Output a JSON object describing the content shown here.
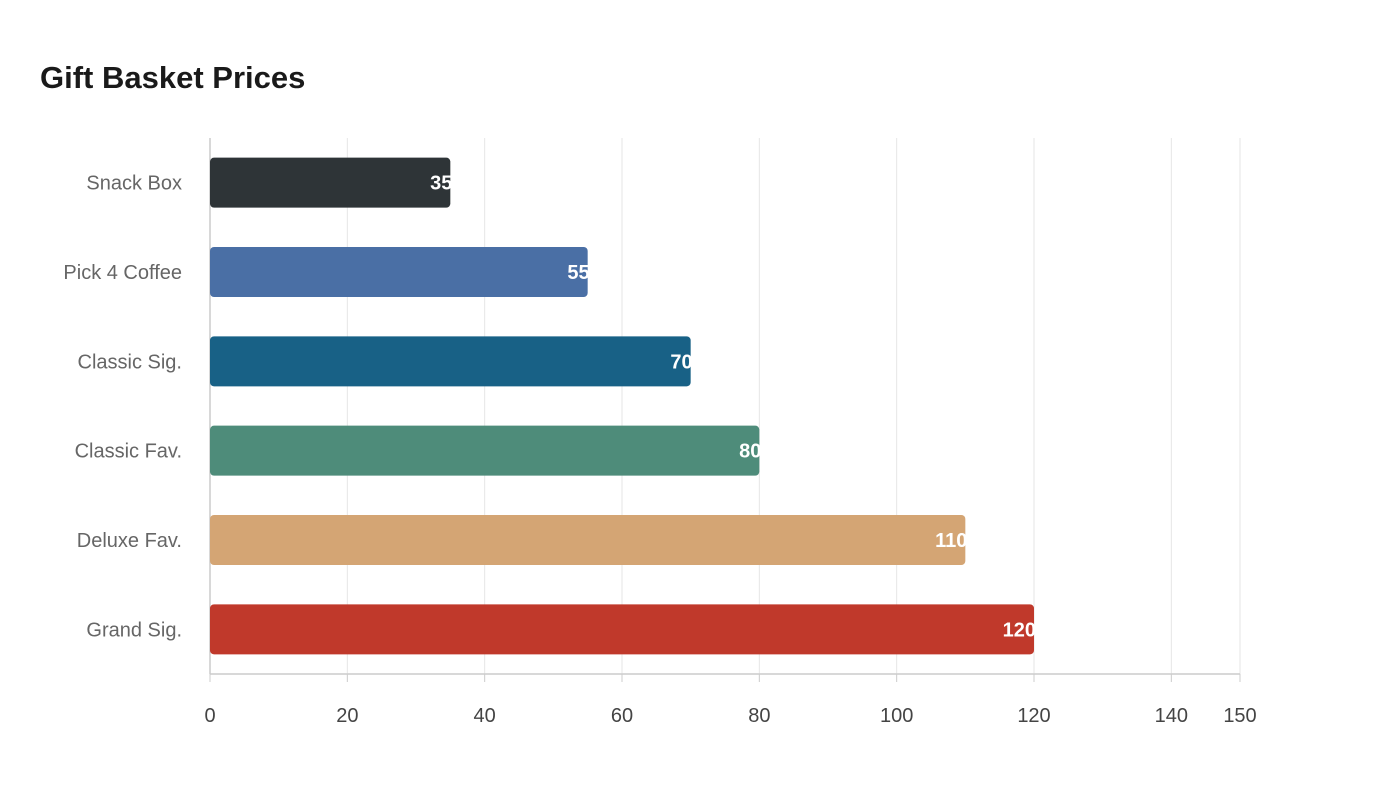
{
  "chart_data": {
    "type": "bar",
    "orientation": "horizontal",
    "title": "Gift Basket Prices",
    "xlabel": "",
    "ylabel": "",
    "categories": [
      "Snack Box",
      "Pick 4 Coffee",
      "Classic Sig.",
      "Classic Fav.",
      "Deluxe Fav.",
      "Grand Sig."
    ],
    "values": [
      35,
      55,
      70,
      80,
      110,
      120
    ],
    "colors": [
      "#2e3437",
      "#4a6fa5",
      "#186186",
      "#4e8c7a",
      "#d4a574",
      "#c0392b"
    ],
    "xlim": [
      0,
      150
    ],
    "xticks": [
      0,
      20,
      40,
      60,
      80,
      100,
      120,
      140,
      150
    ],
    "grid": true,
    "legend": "none"
  }
}
